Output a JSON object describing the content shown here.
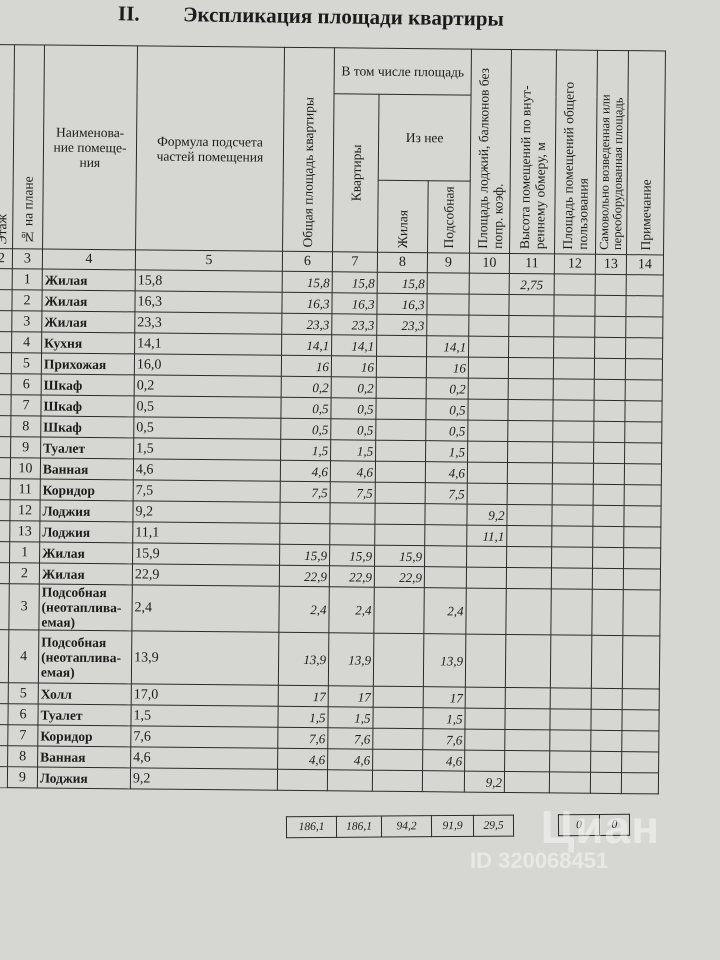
{
  "title": {
    "section": "II.",
    "text": "Экспликация площади квартиры"
  },
  "headers": {
    "floor": "Этаж",
    "plan_no": "№ на плане",
    "room_name": "Наименова-ние помеще-ния",
    "formula": "Формула подсчета частей помещения",
    "total_area": "Общая площадь квартиры",
    "incl_area": "В том числе площадь",
    "apartment": "Квартиры",
    "of_which": "Из нее",
    "living": "Жилая",
    "auxiliary": "Подсобная",
    "loggia": "Площадь лоджий, балконов без попр. коэф.",
    "height": "Высота помещений по внут-реннему обмеру, м",
    "common": "Площадь помещений общего пользования",
    "unauthorized": "Самовольно возведенная или переоборудованная площадь",
    "note": "Примечание"
  },
  "column_numbers": [
    "2",
    "3",
    "4",
    "5",
    "6",
    "7",
    "8",
    "9",
    "10",
    "11",
    "12",
    "13",
    "14"
  ],
  "rows": [
    {
      "no": "1",
      "name": "Жилая",
      "formula": "15,8",
      "total": "15,8",
      "apt": "15,8",
      "living": "15,8",
      "aux": "",
      "loggia": "",
      "height": "2,75"
    },
    {
      "no": "2",
      "name": "Жилая",
      "formula": "16,3",
      "total": "16,3",
      "apt": "16,3",
      "living": "16,3",
      "aux": "",
      "loggia": "",
      "height": ""
    },
    {
      "no": "3",
      "name": "Жилая",
      "formula": "23,3",
      "total": "23,3",
      "apt": "23,3",
      "living": "23,3",
      "aux": "",
      "loggia": "",
      "height": ""
    },
    {
      "no": "4",
      "name": "Кухня",
      "formula": "14,1",
      "total": "14,1",
      "apt": "14,1",
      "living": "",
      "aux": "14,1",
      "loggia": "",
      "height": ""
    },
    {
      "no": "5",
      "name": "Прихожая",
      "formula": "16,0",
      "total": "16",
      "apt": "16",
      "living": "",
      "aux": "16",
      "loggia": "",
      "height": ""
    },
    {
      "no": "6",
      "name": "Шкаф",
      "formula": "0,2",
      "total": "0,2",
      "apt": "0,2",
      "living": "",
      "aux": "0,2",
      "loggia": "",
      "height": ""
    },
    {
      "no": "7",
      "name": "Шкаф",
      "formula": "0,5",
      "total": "0,5",
      "apt": "0,5",
      "living": "",
      "aux": "0,5",
      "loggia": "",
      "height": ""
    },
    {
      "no": "8",
      "name": "Шкаф",
      "formula": "0,5",
      "total": "0,5",
      "apt": "0,5",
      "living": "",
      "aux": "0,5",
      "loggia": "",
      "height": ""
    },
    {
      "no": "9",
      "name": "Туалет",
      "formula": "1,5",
      "total": "1,5",
      "apt": "1,5",
      "living": "",
      "aux": "1,5",
      "loggia": "",
      "height": ""
    },
    {
      "no": "10",
      "name": "Ванная",
      "formula": "4,6",
      "total": "4,6",
      "apt": "4,6",
      "living": "",
      "aux": "4,6",
      "loggia": "",
      "height": ""
    },
    {
      "no": "11",
      "name": "Коридор",
      "formula": "7,5",
      "total": "7,5",
      "apt": "7,5",
      "living": "",
      "aux": "7,5",
      "loggia": "",
      "height": ""
    },
    {
      "no": "12",
      "name": "Лоджия",
      "formula": "9,2",
      "total": "",
      "apt": "",
      "living": "",
      "aux": "",
      "loggia": "9,2",
      "height": ""
    },
    {
      "no": "13",
      "name": "Лоджия",
      "formula": "11,1",
      "total": "",
      "apt": "",
      "living": "",
      "aux": "",
      "loggia": "11,1",
      "height": ""
    },
    {
      "no": "1",
      "name": "Жилая",
      "formula": "15,9",
      "total": "15,9",
      "apt": "15,9",
      "living": "15,9",
      "aux": "",
      "loggia": "",
      "height": ""
    },
    {
      "no": "2",
      "name": "Жилая",
      "formula": "22,9",
      "total": "22,9",
      "apt": "22,9",
      "living": "22,9",
      "aux": "",
      "loggia": "",
      "height": ""
    },
    {
      "no": "3",
      "name": "Подсобная (неотаплива-емая)",
      "formula": "2,4",
      "total": "2,4",
      "apt": "2,4",
      "living": "",
      "aux": "2,4",
      "loggia": "",
      "height": ""
    },
    {
      "no": "4",
      "name": "Подсобная (неотаплива-емая)",
      "formula": "13,9",
      "total": "13,9",
      "apt": "13,9",
      "living": "",
      "aux": "13,9",
      "loggia": "",
      "height": ""
    },
    {
      "no": "5",
      "name": "Холл",
      "formula": "17,0",
      "total": "17",
      "apt": "17",
      "living": "",
      "aux": "17",
      "loggia": "",
      "height": ""
    },
    {
      "no": "6",
      "name": "Туалет",
      "formula": "1,5",
      "total": "1,5",
      "apt": "1,5",
      "living": "",
      "aux": "1,5",
      "loggia": "",
      "height": ""
    },
    {
      "no": "7",
      "name": "Коридор",
      "formula": "7,6",
      "total": "7,6",
      "apt": "7,6",
      "living": "",
      "aux": "7,6",
      "loggia": "",
      "height": ""
    },
    {
      "no": "8",
      "name": "Ванная",
      "formula": "4,6",
      "total": "4,6",
      "apt": "4,6",
      "living": "",
      "aux": "4,6",
      "loggia": "",
      "height": ""
    },
    {
      "no": "9",
      "name": "Лоджия",
      "formula": "9,2",
      "total": "",
      "apt": "",
      "living": "",
      "aux": "",
      "loggia": "9,2",
      "height": ""
    }
  ],
  "totals": {
    "total": "186,1",
    "apt": "186,1",
    "living": "94,2",
    "aux": "91,9",
    "loggia": "29,5",
    "common": "0",
    "unauthorized": "0"
  },
  "watermark": {
    "brand": "Циан",
    "id": "ID 320068451"
  }
}
